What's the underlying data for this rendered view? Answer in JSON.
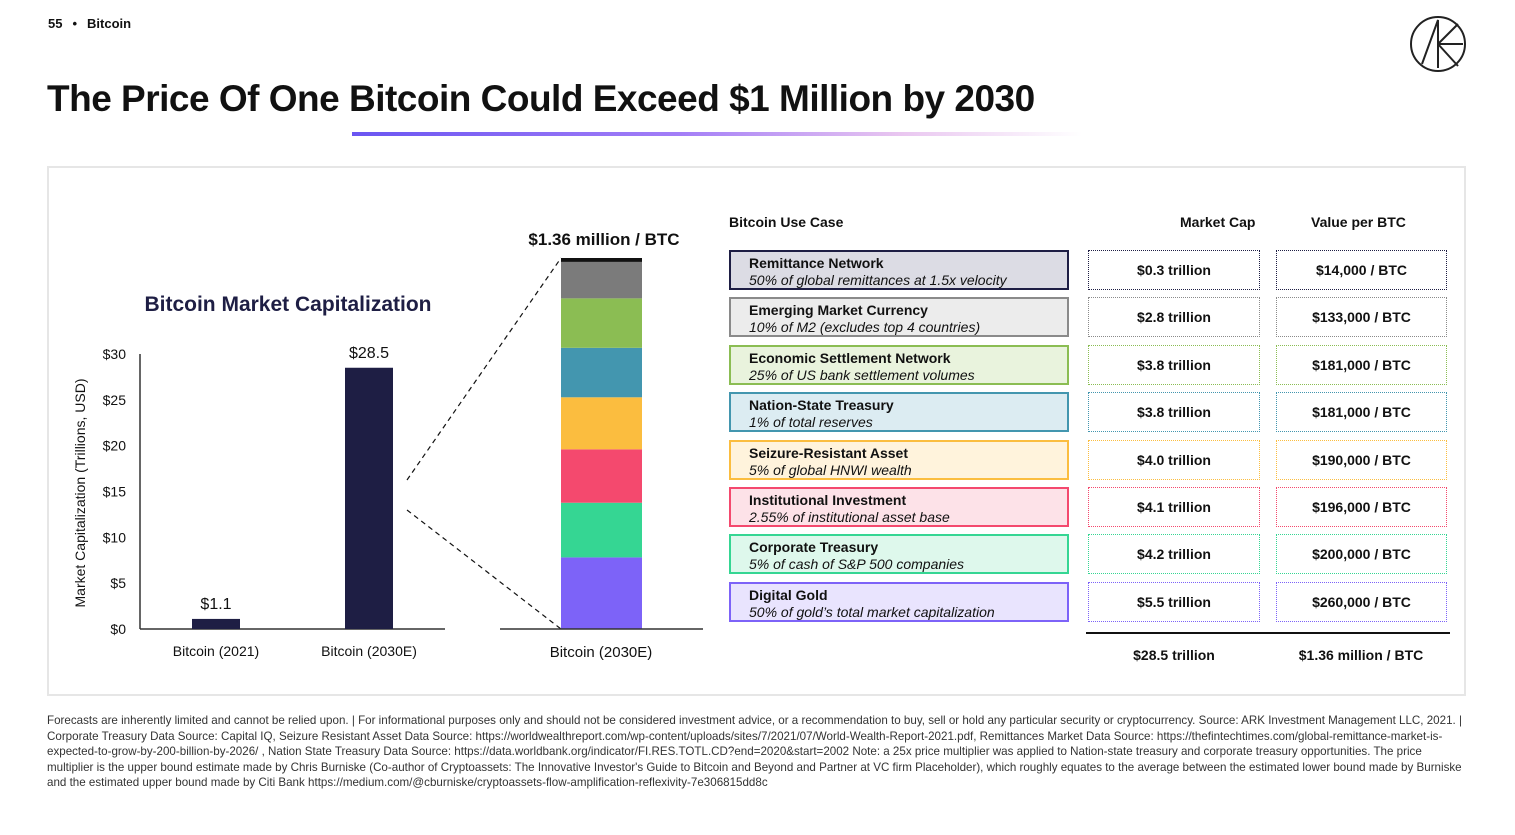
{
  "header": {
    "page_number": "55",
    "separator": "•",
    "section": "Bitcoin"
  },
  "logo": {
    "icon": "ark-logo-icon"
  },
  "title": "The Price Of One Bitcoin Could Exceed $1 Million by 2030",
  "colors": {
    "bar_dark": "#1e1e44",
    "accent_purple": "#6a55f2"
  },
  "chart_data": [
    {
      "type": "bar",
      "title": "Bitcoin Market Capitalization",
      "ylabel": "Market Capitalization (Trillions, USD)",
      "xlabel": "",
      "categories": [
        "Bitcoin (2021)",
        "Bitcoin (2030E)"
      ],
      "values": [
        1.1,
        28.5
      ],
      "value_labels": [
        "$1.1",
        "$28.5"
      ],
      "ylim": [
        0,
        30
      ],
      "yticks": [
        0,
        5,
        10,
        15,
        20,
        25,
        30
      ],
      "ytick_labels": [
        "$0",
        "$5",
        "$10",
        "$15",
        "$20",
        "$25",
        "$30"
      ],
      "grid": false,
      "legend": "none"
    },
    {
      "type": "bar",
      "stacked": true,
      "title": "$1.36 million / BTC",
      "categories": [
        "Bitcoin (2030E)"
      ],
      "series": [
        {
          "name": "Digital Gold",
          "value": 5.5,
          "color": "#7d63f8"
        },
        {
          "name": "Corporate Treasury",
          "value": 4.2,
          "color": "#35d693"
        },
        {
          "name": "Institutional Investment",
          "value": 4.1,
          "color": "#f4496e"
        },
        {
          "name": "Seizure-Resistant Asset",
          "value": 4.0,
          "color": "#fbbd3f"
        },
        {
          "name": "Nation-State Treasury",
          "value": 3.8,
          "color": "#4396af"
        },
        {
          "name": "Economic Settlement Network",
          "value": 3.8,
          "color": "#8bbd53"
        },
        {
          "name": "Emerging Market Currency",
          "value": 2.8,
          "color": "#7b7b7b"
        },
        {
          "name": "Remittance Network",
          "value": 0.3,
          "color": "#111111"
        }
      ]
    }
  ],
  "table": {
    "headers": {
      "use_case": "Bitcoin Use Case",
      "market_cap": "Market Cap",
      "value": "Value per BTC"
    },
    "rows": [
      {
        "name": "Remittance Network",
        "desc": "50% of global remittances at 1.5x velocity",
        "market_cap": "$0.3 trillion",
        "value": "$14,000 / BTC",
        "border": "#1e1e44",
        "bg": "#dcdce4"
      },
      {
        "name": "Emerging Market Currency",
        "desc": "10% of M2 (excludes top 4 countries)",
        "market_cap": "$2.8 trillion",
        "value": "$133,000 / BTC",
        "border": "#8a8a8a",
        "bg": "#ececec"
      },
      {
        "name": "Economic Settlement Network",
        "desc": "25% of US bank settlement volumes",
        "market_cap": "$3.8 trillion",
        "value": "$181,000 / BTC",
        "border": "#8bbd53",
        "bg": "#e9f3dd"
      },
      {
        "name": "Nation-State Treasury",
        "desc": "1% of total reserves",
        "market_cap": "$3.8 trillion",
        "value": "$181,000 / BTC",
        "border": "#4396af",
        "bg": "#dcecf2"
      },
      {
        "name": "Seizure-Resistant Asset",
        "desc": "5% of global HNWI wealth",
        "market_cap": "$4.0 trillion",
        "value": "$190,000 / BTC",
        "border": "#fbbd3f",
        "bg": "#fff3dc"
      },
      {
        "name": "Institutional Investment",
        "desc": "2.55% of institutional asset base",
        "market_cap": "$4.1 trillion",
        "value": "$196,000 / BTC",
        "border": "#f4496e",
        "bg": "#fde2e8"
      },
      {
        "name": "Corporate Treasury",
        "desc": "5% of cash of S&P 500 companies",
        "market_cap": "$4.2 trillion",
        "value": "$200,000 / BTC",
        "border": "#35d693",
        "bg": "#def8ec"
      },
      {
        "name": "Digital Gold",
        "desc": "50% of gold’s total market capitalization",
        "market_cap": "$5.5 trillion",
        "value": "$260,000 / BTC",
        "border": "#7d63f8",
        "bg": "#e9e4fe"
      }
    ],
    "total": {
      "market_cap": "$28.5 trillion",
      "value": "$1.36 million / BTC"
    }
  },
  "footer": "Forecasts are inherently limited and cannot be relied upon. | For informational purposes only and should not be considered investment advice, or a recommendation to buy, sell or hold any particular security or cryptocurrency. Source: ARK Investment Management LLC, 2021.  |  Corporate Treasury Data Source: Capital IQ, Seizure Resistant Asset Data Source: https://worldwealthreport.com/wp-content/uploads/sites/7/2021/07/World-Wealth-Report-2021.pdf, Remittances Market Data Source: https://thefintechtimes.com/global-remittance-market-is-expected-to-grow-by-200-billion-by-2026/ , Nation State Treasury Data Source: https://data.worldbank.org/indicator/FI.RES.TOTL.CD?end=2020&start=2002 Note: a 25x price multiplier was applied to Nation-state treasury and corporate treasury opportunities. The price multiplier is  the upper bound estimate made by Chris Burniske (Co-author of Cryptoassets: The Innovative Investor's Guide to Bitcoin and Beyond and Partner at VC firm Placeholder), which roughly equates to the average between the estimated lower bound made by Burniske and the estimated upper bound made by Citi Bank https://medium.com/@cburniske/cryptoassets-flow-amplification-reflexivity-7e306815dd8c"
}
